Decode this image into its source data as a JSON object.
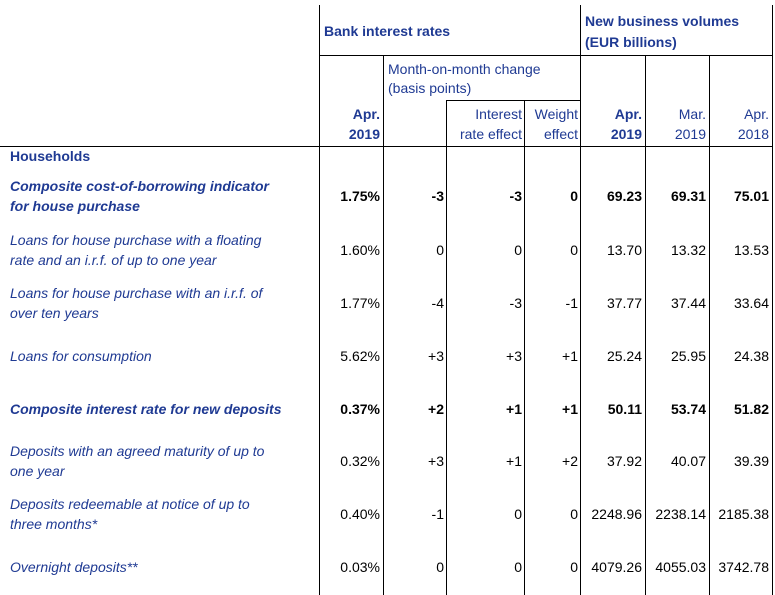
{
  "header": {
    "bank_rates": "Bank interest rates",
    "new_business_l1": "New business volumes",
    "new_business_l2": "(EUR billions)",
    "mom_l1": "Month-on-month change",
    "mom_l2": "(basis points)",
    "col_rate_l1": "Apr.",
    "col_rate_l2": "2019",
    "col_ire_l1": "Interest",
    "col_ire_l2": "rate effect",
    "col_we_l1": "Weight",
    "col_we_l2": "effect",
    "col_v1_l1": "Apr.",
    "col_v1_l2": "2019",
    "col_v2_l1": "Mar.",
    "col_v2_l2": "2019",
    "col_v3_l1": "Apr.",
    "col_v3_l2": "2018"
  },
  "section": "Households",
  "rows": [
    {
      "label_l1": "Composite cost-of-borrowing indicator",
      "label_l2": "for house purchase",
      "rate": "1.75%",
      "mom": "-3",
      "ire": "-3",
      "we": "0",
      "v1": "69.23",
      "v2": "69.31",
      "v3": "75.01"
    },
    {
      "label_l1": "Loans for house purchase with a floating",
      "label_l2": "rate and an i.r.f. of up to one year",
      "rate": "1.60%",
      "mom": "0",
      "ire": "0",
      "we": "0",
      "v1": "13.70",
      "v2": "13.32",
      "v3": "13.53"
    },
    {
      "label_l1": "Loans for house purchase with an i.r.f. of",
      "label_l2": "over ten years",
      "rate": "1.77%",
      "mom": "-4",
      "ire": "-3",
      "we": "-1",
      "v1": "37.77",
      "v2": "37.44",
      "v3": "33.64"
    },
    {
      "label_l1": "Loans for consumption",
      "label_l2": "",
      "rate": "5.62%",
      "mom": "+3",
      "ire": "+3",
      "we": "+1",
      "v1": "25.24",
      "v2": "25.95",
      "v3": "24.38"
    },
    {
      "label_l1": "Composite interest rate for new deposits",
      "label_l2": "",
      "rate": "0.37%",
      "mom": "+2",
      "ire": "+1",
      "we": "+1",
      "v1": "50.11",
      "v2": "53.74",
      "v3": "51.82"
    },
    {
      "label_l1": "Deposits with an agreed maturity of up to",
      "label_l2": "one year",
      "rate": "0.32%",
      "mom": "+3",
      "ire": "+1",
      "we": "+2",
      "v1": "37.92",
      "v2": "40.07",
      "v3": "39.39"
    },
    {
      "label_l1": "Deposits redeemable at notice of up to",
      "label_l2": "three months*",
      "rate": "0.40%",
      "mom": "-1",
      "ire": "0",
      "we": "0",
      "v1": "2248.96",
      "v2": "2238.14",
      "v3": "2185.38"
    },
    {
      "label_l1": "Overnight deposits**",
      "label_l2": "",
      "rate": "0.03%",
      "mom": "0",
      "ire": "0",
      "we": "0",
      "v1": "4079.26",
      "v2": "4055.03",
      "v3": "3742.78"
    }
  ]
}
